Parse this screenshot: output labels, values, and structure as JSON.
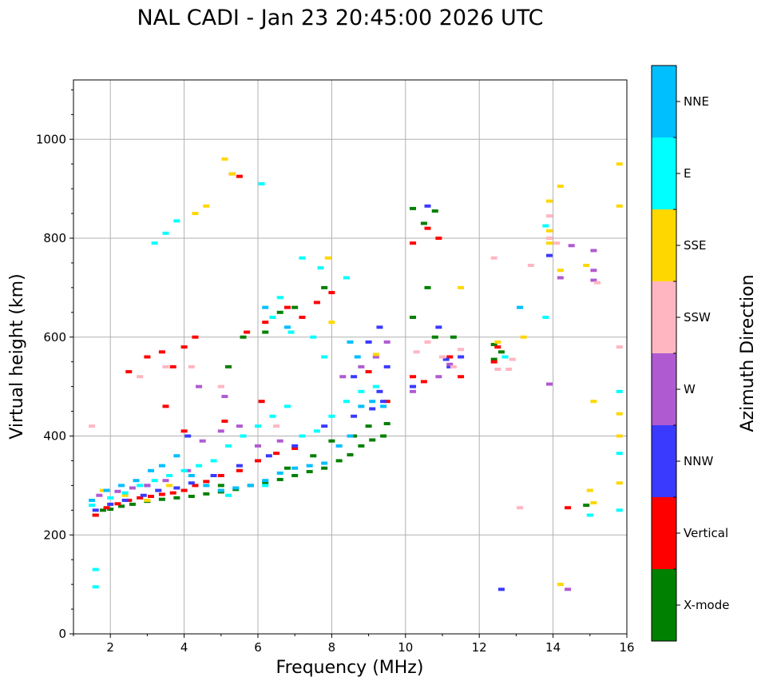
{
  "chart_data": {
    "type": "scatter",
    "title": "NAL CADI - Jan 23 20:45:00 2026 UTC",
    "xlabel": "Frequency (MHz)",
    "ylabel": "Virtual height (km)",
    "xlim": [
      1,
      16
    ],
    "ylim": [
      0,
      1120
    ],
    "x_ticks": [
      2,
      4,
      6,
      8,
      10,
      12,
      14,
      16
    ],
    "x_tick_labels": [
      "2",
      "4",
      "6",
      "8",
      "10",
      "12",
      "14",
      "16"
    ],
    "y_ticks": [
      0,
      200,
      400,
      600,
      800,
      1000
    ],
    "y_tick_labels": [
      "0",
      "200",
      "400",
      "600",
      "800",
      "1000"
    ],
    "grid": true,
    "colorbar": {
      "label": "Azimuth Direction",
      "categories": [
        "X-mode",
        "Vertical",
        "NNW",
        "W",
        "SSW",
        "SSE",
        "E",
        "NNE"
      ],
      "colors": [
        "#008000",
        "#ff0000",
        "#3a3aff",
        "#b05ad2",
        "#ffb6c1",
        "#ffd700",
        "#00ffff",
        "#00bfff"
      ]
    },
    "series": [
      {
        "name": "X-mode",
        "points": [
          [
            1.6,
            240
          ],
          [
            1.8,
            250
          ],
          [
            2.0,
            252
          ],
          [
            2.3,
            258
          ],
          [
            2.6,
            262
          ],
          [
            3.0,
            268
          ],
          [
            3.4,
            272
          ],
          [
            3.8,
            275
          ],
          [
            4.2,
            278
          ],
          [
            4.6,
            283
          ],
          [
            5.0,
            287
          ],
          [
            5.4,
            292
          ],
          [
            5.8,
            300
          ],
          [
            6.2,
            305
          ],
          [
            6.6,
            312
          ],
          [
            7.0,
            320
          ],
          [
            7.4,
            328
          ],
          [
            7.8,
            335
          ],
          [
            8.2,
            350
          ],
          [
            8.5,
            362
          ],
          [
            8.8,
            380
          ],
          [
            9.1,
            392
          ],
          [
            9.4,
            400
          ],
          [
            9.5,
            425
          ],
          [
            8.0,
            390
          ],
          [
            7.5,
            360
          ],
          [
            6.8,
            335
          ],
          [
            5.2,
            540
          ],
          [
            5.6,
            600
          ],
          [
            6.2,
            610
          ],
          [
            6.6,
            650
          ],
          [
            7.0,
            660
          ],
          [
            7.8,
            700
          ],
          [
            10.2,
            860
          ],
          [
            10.5,
            830
          ],
          [
            10.8,
            855
          ],
          [
            10.6,
            700
          ],
          [
            10.2,
            640
          ],
          [
            10.8,
            600
          ],
          [
            11.3,
            600
          ],
          [
            12.4,
            585
          ],
          [
            12.6,
            570
          ],
          [
            12.4,
            555
          ],
          [
            14.9,
            260
          ],
          [
            9.0,
            420
          ],
          [
            8.6,
            400
          ],
          [
            5.0,
            300
          ]
        ]
      },
      {
        "name": "Vertical",
        "points": [
          [
            1.6,
            240
          ],
          [
            1.9,
            255
          ],
          [
            2.2,
            263
          ],
          [
            2.5,
            270
          ],
          [
            2.8,
            275
          ],
          [
            3.1,
            278
          ],
          [
            3.4,
            282
          ],
          [
            3.7,
            285
          ],
          [
            4.0,
            290
          ],
          [
            4.3,
            300
          ],
          [
            4.6,
            308
          ],
          [
            5.0,
            320
          ],
          [
            5.5,
            330
          ],
          [
            6.0,
            350
          ],
          [
            6.5,
            365
          ],
          [
            7.0,
            375
          ],
          [
            4.0,
            410
          ],
          [
            2.5,
            530
          ],
          [
            3.0,
            560
          ],
          [
            3.4,
            570
          ],
          [
            3.7,
            540
          ],
          [
            4.0,
            580
          ],
          [
            4.3,
            600
          ],
          [
            5.3,
            930
          ],
          [
            5.5,
            925
          ],
          [
            5.7,
            610
          ],
          [
            6.2,
            630
          ],
          [
            6.8,
            660
          ],
          [
            7.2,
            640
          ],
          [
            7.6,
            670
          ],
          [
            8.0,
            690
          ],
          [
            9.0,
            530
          ],
          [
            9.5,
            470
          ],
          [
            10.2,
            520
          ],
          [
            10.5,
            510
          ],
          [
            10.2,
            790
          ],
          [
            10.6,
            820
          ],
          [
            10.9,
            800
          ],
          [
            11.2,
            560
          ],
          [
            11.5,
            520
          ],
          [
            12.4,
            550
          ],
          [
            12.5,
            580
          ],
          [
            14.4,
            255
          ],
          [
            3.5,
            460
          ],
          [
            5.1,
            430
          ],
          [
            6.1,
            470
          ]
        ]
      },
      {
        "name": "NNW",
        "points": [
          [
            1.6,
            250
          ],
          [
            2.0,
            262
          ],
          [
            2.4,
            270
          ],
          [
            2.9,
            280
          ],
          [
            3.3,
            290
          ],
          [
            3.8,
            295
          ],
          [
            4.2,
            305
          ],
          [
            4.8,
            320
          ],
          [
            5.5,
            340
          ],
          [
            6.3,
            360
          ],
          [
            7.0,
            380
          ],
          [
            7.8,
            420
          ],
          [
            8.6,
            440
          ],
          [
            9.1,
            455
          ],
          [
            9.3,
            490
          ],
          [
            9.5,
            540
          ],
          [
            9.4,
            470
          ],
          [
            8.6,
            520
          ],
          [
            9.0,
            590
          ],
          [
            9.3,
            620
          ],
          [
            10.6,
            865
          ],
          [
            10.9,
            620
          ],
          [
            11.1,
            555
          ],
          [
            11.5,
            560
          ],
          [
            11.2,
            540
          ],
          [
            12.6,
            90
          ],
          [
            13.9,
            765
          ],
          [
            10.2,
            500
          ],
          [
            4.1,
            400
          ],
          [
            3.0,
            300
          ]
        ]
      },
      {
        "name": "W",
        "points": [
          [
            1.7,
            280
          ],
          [
            2.2,
            288
          ],
          [
            2.6,
            295
          ],
          [
            3.0,
            300
          ],
          [
            3.5,
            310
          ],
          [
            4.1,
            330
          ],
          [
            4.5,
            390
          ],
          [
            5.0,
            410
          ],
          [
            5.5,
            420
          ],
          [
            6.0,
            380
          ],
          [
            6.6,
            390
          ],
          [
            8.3,
            520
          ],
          [
            8.8,
            540
          ],
          [
            9.2,
            560
          ],
          [
            9.5,
            590
          ],
          [
            10.2,
            490
          ],
          [
            10.9,
            520
          ],
          [
            11.2,
            545
          ],
          [
            14.4,
            90
          ],
          [
            15.1,
            775
          ],
          [
            15.1,
            735
          ],
          [
            15.1,
            715
          ],
          [
            14.2,
            720
          ],
          [
            14.5,
            785
          ],
          [
            13.9,
            505
          ],
          [
            4.4,
            500
          ],
          [
            5.1,
            480
          ]
        ]
      },
      {
        "name": "SSW",
        "points": [
          [
            1.5,
            420
          ],
          [
            2.8,
            520
          ],
          [
            3.5,
            540
          ],
          [
            4.2,
            540
          ],
          [
            5.0,
            500
          ],
          [
            6.5,
            420
          ],
          [
            10.3,
            570
          ],
          [
            10.6,
            590
          ],
          [
            11.0,
            560
          ],
          [
            11.3,
            540
          ],
          [
            11.5,
            575
          ],
          [
            12.4,
            760
          ],
          [
            12.5,
            535
          ],
          [
            12.7,
            560
          ],
          [
            12.8,
            535
          ],
          [
            12.9,
            555
          ],
          [
            13.1,
            255
          ],
          [
            13.4,
            745
          ],
          [
            13.9,
            845
          ],
          [
            13.9,
            800
          ],
          [
            14.1,
            790
          ],
          [
            15.2,
            710
          ],
          [
            15.8,
            580
          ]
        ]
      },
      {
        "name": "SSE",
        "points": [
          [
            1.8,
            290
          ],
          [
            2.4,
            280
          ],
          [
            3.0,
            270
          ],
          [
            3.6,
            300
          ],
          [
            4.3,
            850
          ],
          [
            4.6,
            865
          ],
          [
            5.1,
            960
          ],
          [
            5.3,
            930
          ],
          [
            7.9,
            760
          ],
          [
            8.0,
            630
          ],
          [
            9.2,
            565
          ],
          [
            11.5,
            700
          ],
          [
            12.5,
            590
          ],
          [
            13.2,
            600
          ],
          [
            13.9,
            875
          ],
          [
            14.2,
            905
          ],
          [
            13.9,
            790
          ],
          [
            13.9,
            815
          ],
          [
            14.2,
            735
          ],
          [
            14.2,
            100
          ],
          [
            14.9,
            745
          ],
          [
            15.0,
            290
          ],
          [
            15.1,
            265
          ],
          [
            15.1,
            470
          ],
          [
            15.8,
            950
          ],
          [
            15.8,
            865
          ],
          [
            15.8,
            445
          ],
          [
            15.8,
            400
          ],
          [
            15.8,
            305
          ]
        ]
      },
      {
        "name": "E",
        "points": [
          [
            1.5,
            260
          ],
          [
            1.6,
            130
          ],
          [
            1.6,
            95
          ],
          [
            2.0,
            275
          ],
          [
            2.4,
            285
          ],
          [
            2.8,
            300
          ],
          [
            3.2,
            310
          ],
          [
            3.6,
            320
          ],
          [
            4.0,
            330
          ],
          [
            4.4,
            340
          ],
          [
            4.8,
            350
          ],
          [
            5.2,
            380
          ],
          [
            5.6,
            400
          ],
          [
            6.0,
            420
          ],
          [
            6.4,
            440
          ],
          [
            6.8,
            460
          ],
          [
            7.2,
            400
          ],
          [
            7.6,
            410
          ],
          [
            8.0,
            440
          ],
          [
            8.4,
            470
          ],
          [
            8.8,
            490
          ],
          [
            9.2,
            500
          ],
          [
            3.2,
            790
          ],
          [
            3.5,
            810
          ],
          [
            3.8,
            835
          ],
          [
            6.1,
            910
          ],
          [
            6.6,
            680
          ],
          [
            7.2,
            760
          ],
          [
            7.7,
            740
          ],
          [
            8.4,
            720
          ],
          [
            6.4,
            640
          ],
          [
            6.9,
            610
          ],
          [
            7.5,
            600
          ],
          [
            7.8,
            560
          ],
          [
            12.7,
            560
          ],
          [
            13.8,
            640
          ],
          [
            13.8,
            825
          ],
          [
            15.0,
            240
          ],
          [
            15.8,
            490
          ],
          [
            15.8,
            365
          ],
          [
            15.8,
            250
          ],
          [
            5.2,
            280
          ],
          [
            6.2,
            300
          ]
        ]
      },
      {
        "name": "NNE",
        "points": [
          [
            1.5,
            270
          ],
          [
            1.9,
            290
          ],
          [
            2.3,
            300
          ],
          [
            2.7,
            310
          ],
          [
            3.1,
            330
          ],
          [
            3.4,
            340
          ],
          [
            3.8,
            360
          ],
          [
            4.2,
            320
          ],
          [
            4.6,
            300
          ],
          [
            5.0,
            290
          ],
          [
            5.4,
            295
          ],
          [
            5.8,
            300
          ],
          [
            6.2,
            310
          ],
          [
            6.6,
            325
          ],
          [
            7.0,
            335
          ],
          [
            7.4,
            340
          ],
          [
            7.8,
            345
          ],
          [
            8.2,
            380
          ],
          [
            8.5,
            400
          ],
          [
            8.8,
            460
          ],
          [
            9.1,
            470
          ],
          [
            9.4,
            460
          ],
          [
            13.1,
            660
          ],
          [
            6.2,
            660
          ],
          [
            6.8,
            620
          ],
          [
            8.5,
            590
          ],
          [
            8.7,
            560
          ]
        ]
      }
    ]
  }
}
